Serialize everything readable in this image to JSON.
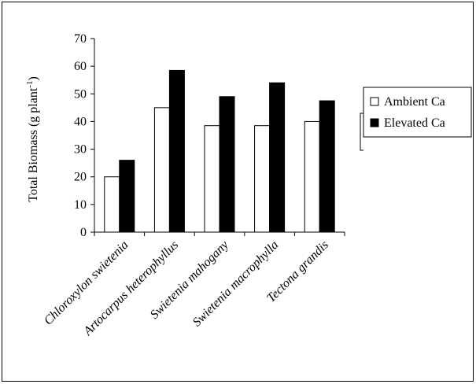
{
  "chart_data": {
    "type": "bar",
    "ylabel_main": "Total Biomass (g plant",
    "ylabel_sup": "-1",
    "ylabel_close": ")",
    "xlabel": "",
    "ylim": [
      0,
      70
    ],
    "yticks": [
      "0",
      "10",
      "20",
      "30",
      "40",
      "50",
      "60",
      "70"
    ],
    "categories": [
      "Chloroxylon swietenia",
      "Artocarpus heterophyllus",
      "Swietenia mahogany",
      "Swietenia macrophylla",
      "Tectona grandis"
    ],
    "series": [
      {
        "name": "Ambient Ca",
        "color": "#ffffff",
        "values": [
          20,
          45,
          38.5,
          38.5,
          40
        ]
      },
      {
        "name": "Elevated Ca",
        "color": "#000000",
        "values": [
          26,
          58.5,
          49,
          54,
          47.5
        ]
      }
    ],
    "legend_placement": "right",
    "grid": false
  }
}
